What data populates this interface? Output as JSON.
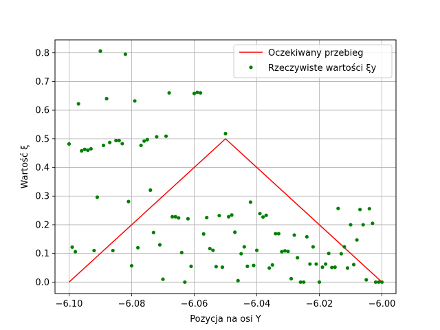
{
  "chart_data": {
    "type": "line",
    "title": "",
    "xlabel": "Pozycja na osi Y",
    "ylabel": "Wartość ξ",
    "xlim": [
      -6.1045,
      -5.9955
    ],
    "ylim": [
      -0.04,
      0.845
    ],
    "grid": true,
    "legend_position": "top-right",
    "x_ticks": [
      -6.1,
      -6.08,
      -6.06,
      -6.04,
      -6.02,
      -6.0
    ],
    "x_tick_labels": [
      "−6.10",
      "−6.08",
      "−6.06",
      "−6.04",
      "−6.02",
      "−6.00"
    ],
    "y_ticks": [
      0.0,
      0.1,
      0.2,
      0.3,
      0.4,
      0.5,
      0.6,
      0.7,
      0.8
    ],
    "y_tick_labels": [
      "0.0",
      "0.1",
      "0.2",
      "0.3",
      "0.4",
      "0.5",
      "0.6",
      "0.7",
      "0.8"
    ],
    "series": [
      {
        "name": "Oczekiwany przebieg",
        "kind": "line",
        "color": "#ff0000",
        "points": [
          [
            -6.1,
            0.0
          ],
          [
            -6.05,
            0.5
          ],
          [
            -6.0,
            0.0
          ]
        ]
      },
      {
        "name": "Rzeczywiste wartości ξy",
        "kind": "scatter",
        "color": "#008000",
        "points": [
          [
            -6.1,
            0.482
          ],
          [
            -6.099,
            0.122
          ],
          [
            -6.098,
            0.106
          ],
          [
            -6.097,
            0.622
          ],
          [
            -6.096,
            0.458
          ],
          [
            -6.095,
            0.463
          ],
          [
            -6.094,
            0.46
          ],
          [
            -6.093,
            0.465
          ],
          [
            -6.092,
            0.11
          ],
          [
            -6.091,
            0.296
          ],
          [
            -6.09,
            0.806
          ],
          [
            -6.089,
            0.477
          ],
          [
            -6.088,
            0.64
          ],
          [
            -6.087,
            0.487
          ],
          [
            -6.086,
            0.11
          ],
          [
            -6.085,
            0.494
          ],
          [
            -6.084,
            0.494
          ],
          [
            -6.083,
            0.483
          ],
          [
            -6.082,
            0.795
          ],
          [
            -6.081,
            0.281
          ],
          [
            -6.08,
            0.057
          ],
          [
            -6.079,
            0.632
          ],
          [
            -6.078,
            0.12
          ],
          [
            -6.077,
            0.477
          ],
          [
            -6.076,
            0.492
          ],
          [
            -6.075,
            0.497
          ],
          [
            -6.074,
            0.321
          ],
          [
            -6.073,
            0.173
          ],
          [
            -6.072,
            0.507
          ],
          [
            -6.071,
            0.13
          ],
          [
            -6.07,
            0.01
          ],
          [
            -6.069,
            0.509
          ],
          [
            -6.068,
            0.66
          ],
          [
            -6.067,
            0.228
          ],
          [
            -6.066,
            0.228
          ],
          [
            -6.065,
            0.224
          ],
          [
            -6.064,
            0.103
          ],
          [
            -6.063,
            0.0
          ],
          [
            -6.062,
            0.221
          ],
          [
            -6.061,
            0.055
          ],
          [
            -6.06,
            0.658
          ],
          [
            -6.059,
            0.662
          ],
          [
            -6.058,
            0.66
          ],
          [
            -6.057,
            0.168
          ],
          [
            -6.056,
            0.225
          ],
          [
            -6.055,
            0.117
          ],
          [
            -6.054,
            0.111
          ],
          [
            -6.053,
            0.054
          ],
          [
            -6.052,
            0.232
          ],
          [
            -6.051,
            0.052
          ],
          [
            -6.05,
            0.518
          ],
          [
            -6.049,
            0.228
          ],
          [
            -6.048,
            0.234
          ],
          [
            -6.047,
            0.174
          ],
          [
            -6.046,
            0.005
          ],
          [
            -6.045,
            0.099
          ],
          [
            -6.044,
            0.123
          ],
          [
            -6.043,
            0.055
          ],
          [
            -6.042,
            0.279
          ],
          [
            -6.041,
            0.058
          ],
          [
            -6.04,
            0.111
          ],
          [
            -6.039,
            0.239
          ],
          [
            -6.038,
            0.227
          ],
          [
            -6.037,
            0.233
          ],
          [
            -6.036,
            0.049
          ],
          [
            -6.035,
            0.06
          ],
          [
            -6.034,
            0.169
          ],
          [
            -6.033,
            0.169
          ],
          [
            -6.032,
            0.106
          ],
          [
            -6.031,
            0.109
          ],
          [
            -6.03,
            0.107
          ],
          [
            -6.029,
            0.012
          ],
          [
            -6.028,
            0.164
          ],
          [
            -6.027,
            0.085
          ],
          [
            -6.026,
            0.0
          ],
          [
            -6.025,
            0.0
          ],
          [
            -6.024,
            0.158
          ],
          [
            -6.023,
            0.063
          ],
          [
            -6.022,
            0.123
          ],
          [
            -6.021,
            0.063
          ],
          [
            -6.02,
            0.0
          ],
          [
            -6.019,
            0.052
          ],
          [
            -6.018,
            0.063
          ],
          [
            -6.017,
            0.1
          ],
          [
            -6.016,
            0.051
          ],
          [
            -6.015,
            0.052
          ],
          [
            -6.014,
            0.257
          ],
          [
            -6.013,
            0.099
          ],
          [
            -6.012,
            0.123
          ],
          [
            -6.011,
            0.049
          ],
          [
            -6.01,
            0.2
          ],
          [
            -6.009,
            0.061
          ],
          [
            -6.008,
            0.147
          ],
          [
            -6.007,
            0.253
          ],
          [
            -6.006,
            0.2
          ],
          [
            -6.005,
            0.008
          ],
          [
            -6.004,
            0.256
          ],
          [
            -6.003,
            0.205
          ],
          [
            -6.002,
            0.0
          ],
          [
            -6.001,
            0.0
          ],
          [
            -6.0,
            0.0
          ]
        ]
      }
    ]
  }
}
